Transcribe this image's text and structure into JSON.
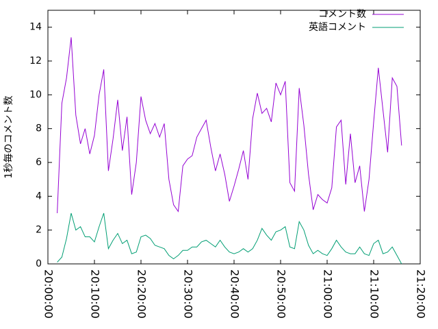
{
  "chart_data": {
    "type": "line",
    "y_label": "1秒毎のコメント数",
    "x": [
      "20:02:00",
      "20:03:00",
      "20:04:00",
      "20:05:00",
      "20:06:00",
      "20:07:00",
      "20:08:00",
      "20:09:00",
      "20:10:00",
      "20:11:00",
      "20:12:00",
      "20:13:00",
      "20:14:00",
      "20:15:00",
      "20:16:00",
      "20:17:00",
      "20:18:00",
      "20:19:00",
      "20:20:00",
      "20:21:00",
      "20:22:00",
      "20:23:00",
      "20:24:00",
      "20:25:00",
      "20:26:00",
      "20:27:00",
      "20:28:00",
      "20:29:00",
      "20:30:00",
      "20:31:00",
      "20:32:00",
      "20:33:00",
      "20:34:00",
      "20:35:00",
      "20:36:00",
      "20:37:00",
      "20:38:00",
      "20:39:00",
      "20:40:00",
      "20:41:00",
      "20:42:00",
      "20:43:00",
      "20:44:00",
      "20:45:00",
      "20:46:00",
      "20:47:00",
      "20:48:00",
      "20:49:00",
      "20:50:00",
      "20:51:00",
      "20:52:00",
      "20:53:00",
      "20:54:00",
      "20:55:00",
      "20:56:00",
      "20:57:00",
      "20:58:00",
      "20:59:00",
      "21:00:00",
      "21:01:00",
      "21:02:00",
      "21:03:00",
      "21:04:00",
      "21:05:00",
      "21:06:00",
      "21:07:00",
      "21:08:00",
      "21:09:00",
      "21:10:00",
      "21:11:00",
      "21:12:00",
      "21:13:00",
      "21:14:00",
      "21:15:00",
      "21:16:00"
    ],
    "series": [
      {
        "name": "コメント数",
        "color": "#9400d3",
        "values": [
          3.0,
          9.5,
          11.0,
          13.4,
          8.8,
          7.1,
          8.0,
          6.5,
          7.6,
          10.0,
          11.5,
          5.5,
          7.4,
          9.7,
          6.7,
          8.7,
          4.1,
          6.0,
          9.9,
          8.5,
          7.7,
          8.3,
          7.5,
          8.3,
          5.0,
          3.5,
          3.1,
          5.8,
          6.2,
          6.4,
          7.5,
          8.0,
          8.5,
          6.9,
          5.5,
          6.5,
          5.3,
          3.7,
          4.6,
          5.6,
          6.7,
          5.0,
          8.6,
          10.1,
          8.9,
          9.2,
          8.4,
          10.7,
          10.0,
          10.8,
          4.8,
          4.3,
          10.4,
          8.2,
          5.3,
          3.2,
          4.1,
          3.8,
          3.6,
          4.5,
          8.1,
          8.5,
          4.7,
          7.7,
          4.8,
          5.8,
          3.1,
          5.0,
          8.4,
          11.6,
          9.1,
          6.6,
          11.0,
          10.5,
          7.0
        ]
      },
      {
        "name": "英語コメント",
        "color": "#009e73",
        "values": [
          0.1,
          0.4,
          1.5,
          3.0,
          2.0,
          2.2,
          1.6,
          1.6,
          1.3,
          2.2,
          3.0,
          0.9,
          1.4,
          1.8,
          1.2,
          1.4,
          0.6,
          0.7,
          1.6,
          1.7,
          1.5,
          1.1,
          1.0,
          0.9,
          0.5,
          0.3,
          0.5,
          0.8,
          0.8,
          1.0,
          1.0,
          1.3,
          1.4,
          1.2,
          1.0,
          1.4,
          1.0,
          0.7,
          0.6,
          0.7,
          0.9,
          0.7,
          0.9,
          1.4,
          2.1,
          1.7,
          1.4,
          1.9,
          2.0,
          2.2,
          1.0,
          0.9,
          2.5,
          2.0,
          1.1,
          0.6,
          0.8,
          0.6,
          0.5,
          0.9,
          1.4,
          1.0,
          0.7,
          0.6,
          0.6,
          1.0,
          0.6,
          0.5,
          1.2,
          1.4,
          0.6,
          0.7,
          1.0,
          0.5,
          0.0
        ]
      }
    ],
    "xlim": [
      "20:00:00",
      "21:20:00"
    ],
    "xticks": [
      "20:00:00",
      "20:10:00",
      "20:20:00",
      "20:30:00",
      "20:40:00",
      "20:50:00",
      "21:00:00",
      "21:10:00",
      "21:20:00"
    ],
    "ylim": [
      0,
      15
    ],
    "yticks": [
      0,
      2,
      4,
      6,
      8,
      10,
      12,
      14
    ],
    "legend": "top-right"
  }
}
